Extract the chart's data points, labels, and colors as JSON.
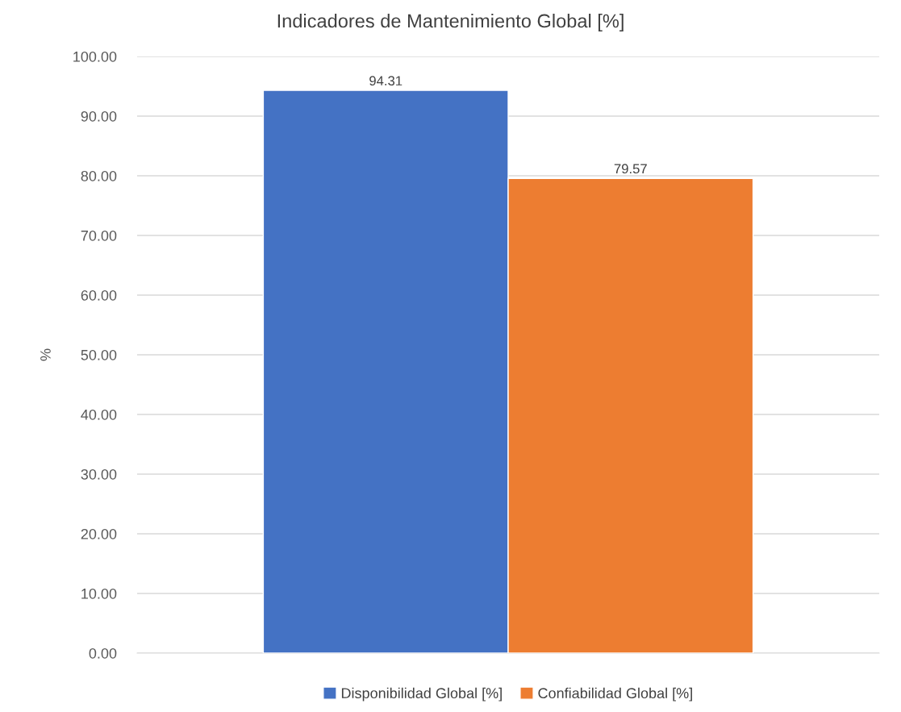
{
  "chart_data": {
    "type": "bar",
    "title": "Indicadores de Mantenimiento Global [%]",
    "ylabel": "%",
    "categories": [
      null
    ],
    "series": [
      {
        "name": "Disponibilidad Global [%]",
        "color": "#4472c4",
        "values": [
          94.31
        ]
      },
      {
        "name": "Confiabilidad Global [%]",
        "color": "#ed7d31",
        "values": [
          79.57
        ]
      }
    ],
    "ylim": [
      0,
      100
    ],
    "yticks": [
      {
        "value": 0,
        "label": "0.00"
      },
      {
        "value": 10,
        "label": "10.00"
      },
      {
        "value": 20,
        "label": "20.00"
      },
      {
        "value": 30,
        "label": "30.00"
      },
      {
        "value": 40,
        "label": "40.00"
      },
      {
        "value": 50,
        "label": "50.00"
      },
      {
        "value": 60,
        "label": "60.00"
      },
      {
        "value": 70,
        "label": "70.00"
      },
      {
        "value": 80,
        "label": "80.00"
      },
      {
        "value": 90,
        "label": "90.00"
      },
      {
        "value": 100,
        "label": "100.00"
      }
    ],
    "data_labels": true,
    "grid": "y",
    "legend": "bottom"
  }
}
